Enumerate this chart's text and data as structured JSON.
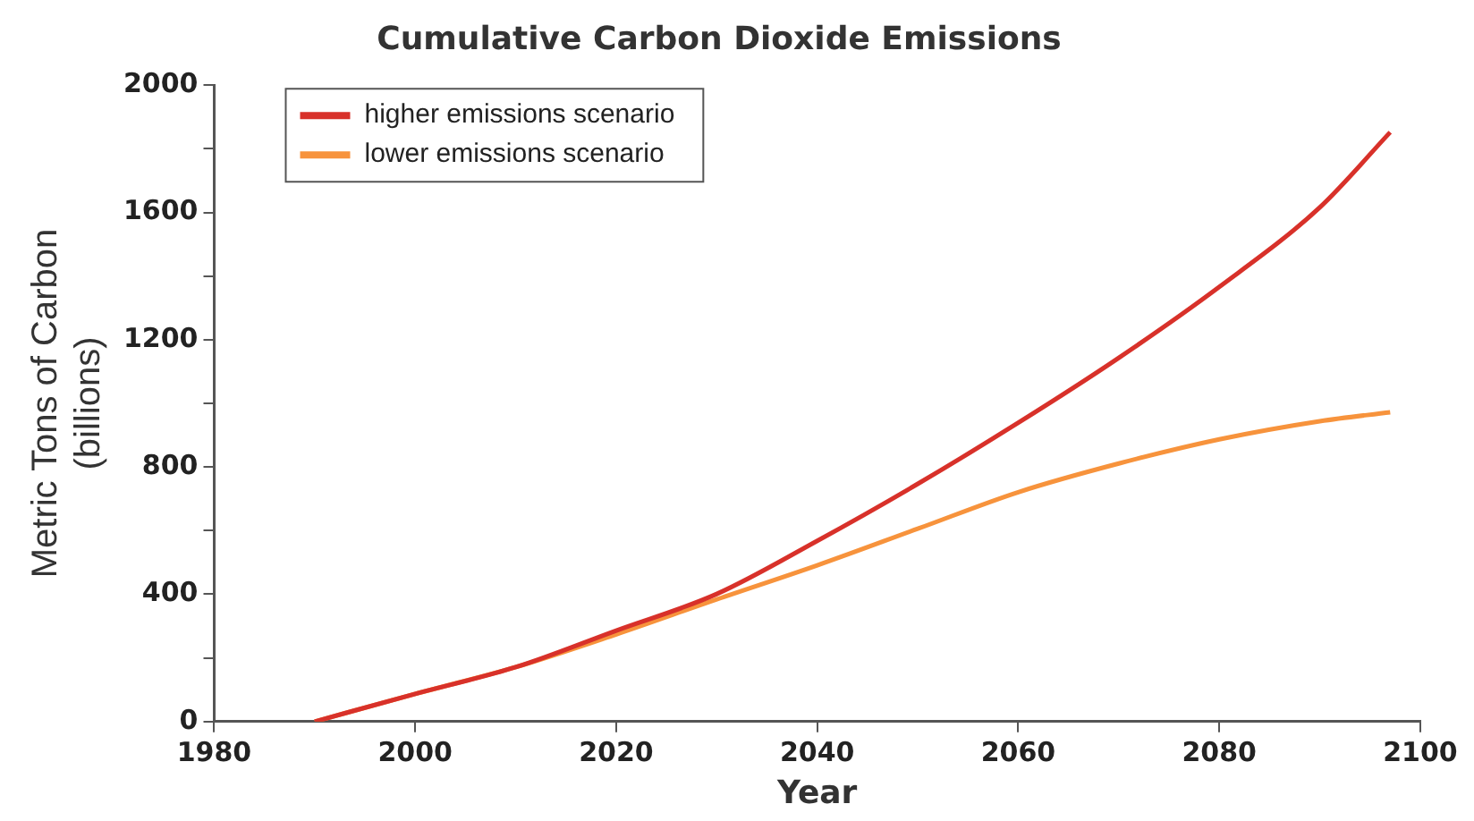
{
  "chart_data": {
    "type": "line",
    "title": "Cumulative Carbon Dioxide Emissions",
    "xlabel": "Year",
    "ylabel": "Metric Tons of Carbon\n(billions)",
    "xlim": [
      1980,
      2100
    ],
    "xticks": [
      1980,
      2000,
      2020,
      2040,
      2060,
      2080,
      2100
    ],
    "ylim": [
      0,
      2000
    ],
    "yticks": [
      0,
      {
        "value": 200,
        "label": null
      },
      400,
      {
        "value": 600,
        "label": null
      },
      800,
      {
        "value": 1000,
        "label": null
      },
      1200,
      {
        "value": 1400,
        "label": null
      },
      1600,
      {
        "value": 1800,
        "label": null
      },
      2000
    ],
    "grid": false,
    "legend": "top left",
    "marker": "none",
    "line_style": "solid",
    "series": [
      {
        "name": "higher emissions scenario",
        "color": "#d8312a",
        "x": [
          1990,
          2000,
          2010,
          2020,
          2030,
          2040,
          2050,
          2060,
          2070,
          2080,
          2090,
          2097
        ],
        "values": [
          0,
          87,
          171,
          286,
          401,
          568,
          747,
          939,
          1143,
          1366,
          1616,
          1852
        ]
      },
      {
        "name": "lower emissions scenario",
        "color": "#f7933c",
        "x": [
          1990,
          2000,
          2010,
          2020,
          2030,
          2040,
          2050,
          2060,
          2070,
          2080,
          2090,
          2097
        ],
        "values": [
          0,
          87,
          171,
          274,
          384,
          491,
          606,
          721,
          811,
          887,
          944,
          972
        ]
      }
    ]
  }
}
